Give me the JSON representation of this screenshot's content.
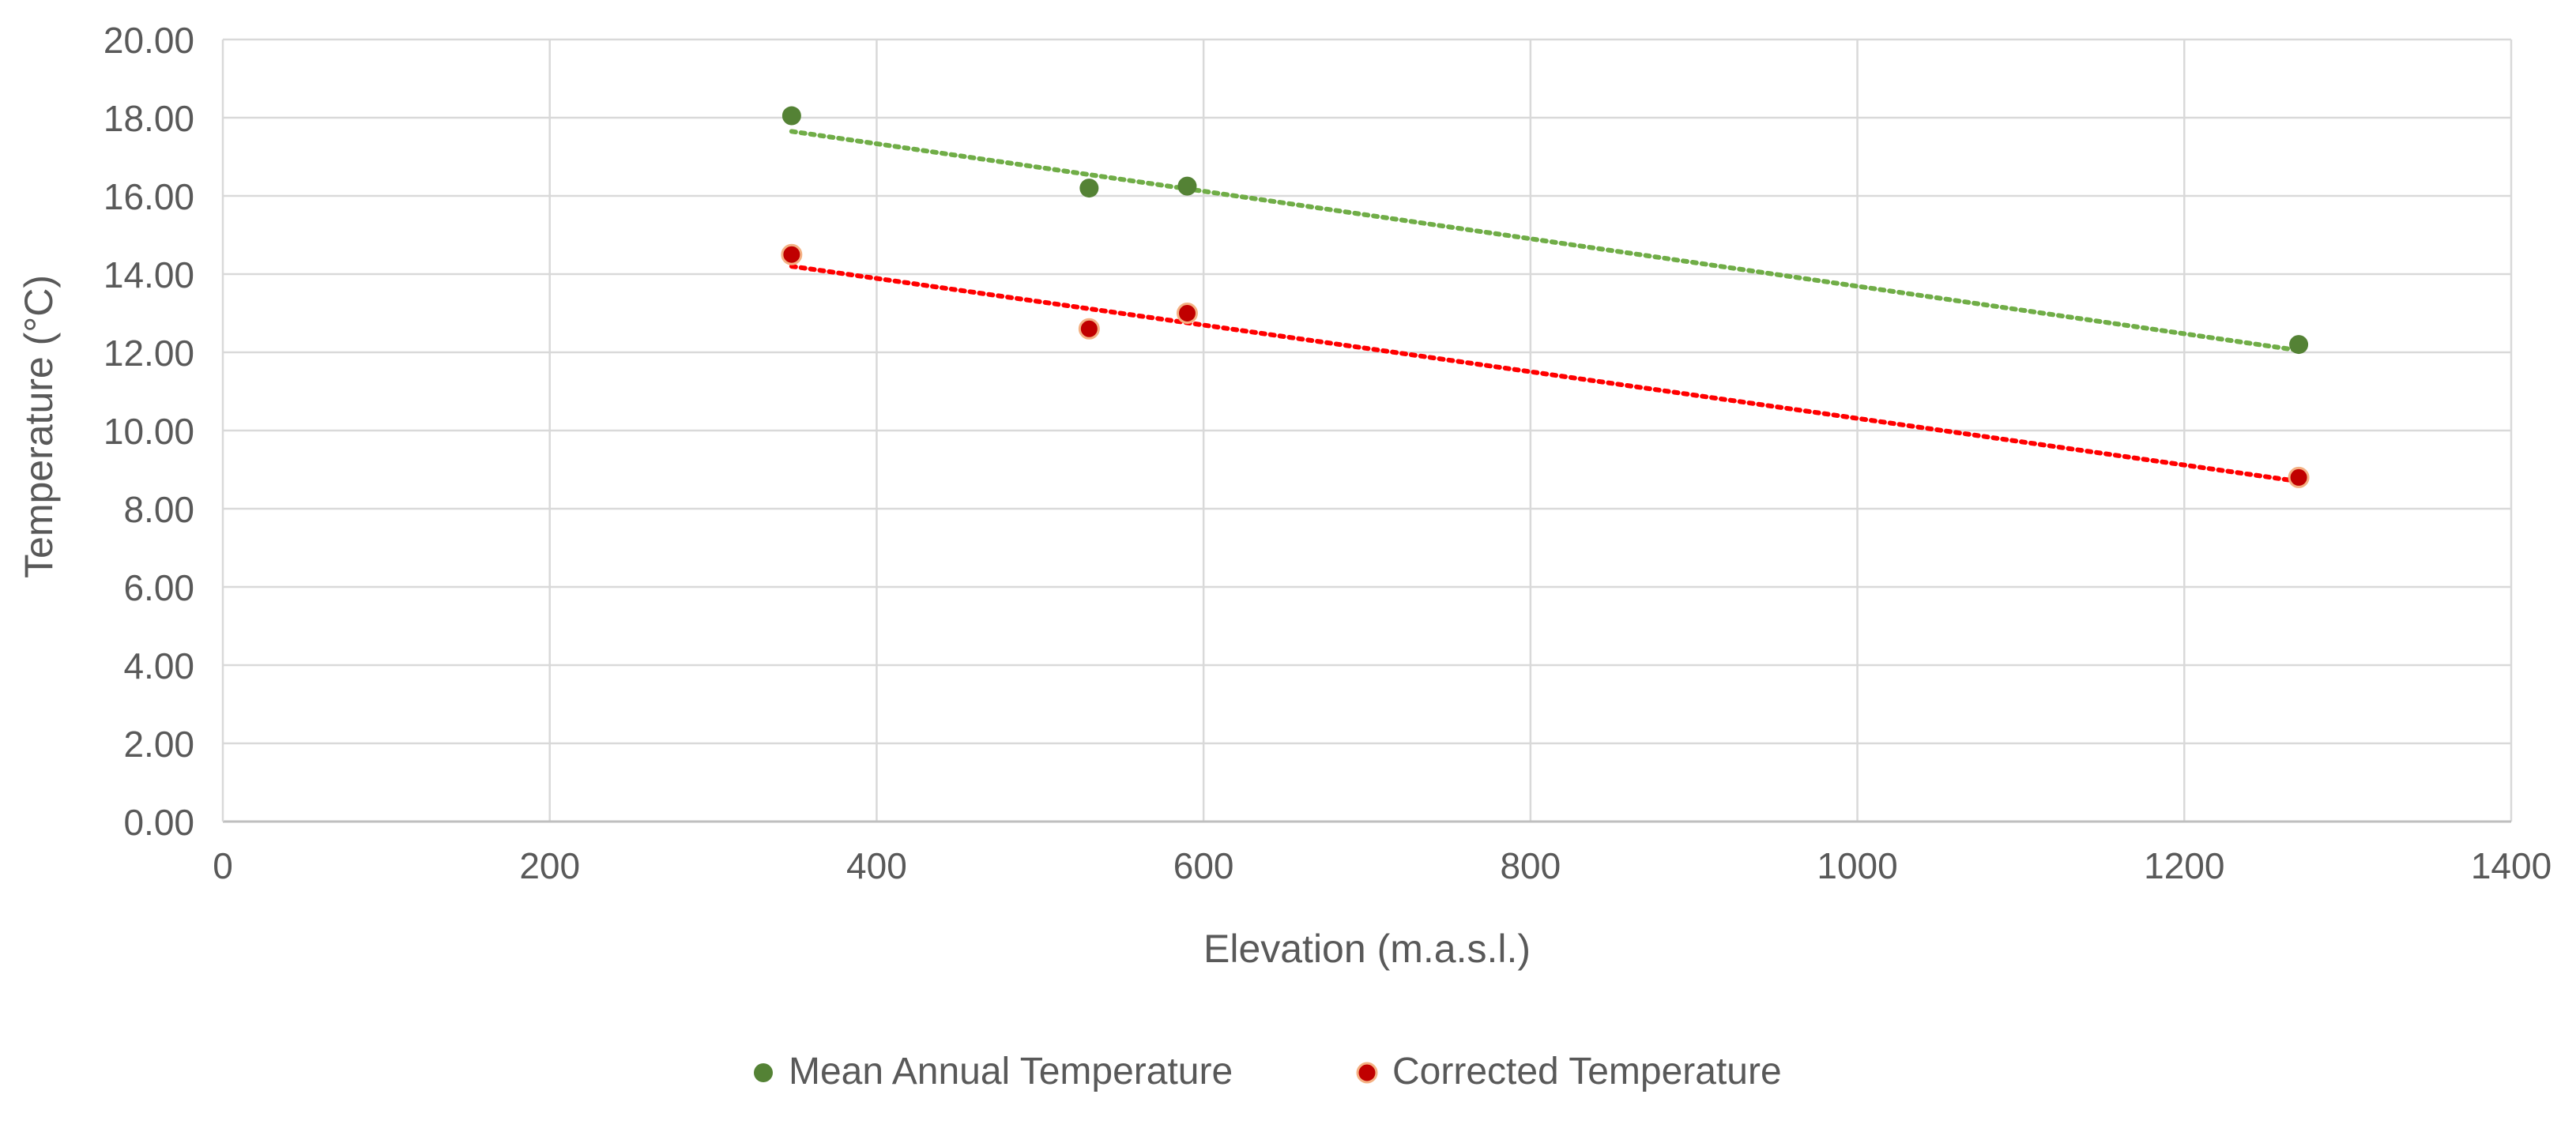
{
  "chart_data": {
    "type": "scatter",
    "title": "",
    "xlabel": "Elevation (m.a.s.l.)",
    "ylabel": "Temperature (°C)",
    "xlim": [
      0,
      1400
    ],
    "ylim": [
      0,
      20
    ],
    "x_ticks": [
      "0",
      "200",
      "400",
      "600",
      "800",
      "1000",
      "1200",
      "1400"
    ],
    "y_ticks": [
      "0.00",
      "2.00",
      "4.00",
      "6.00",
      "8.00",
      "10.00",
      "12.00",
      "14.00",
      "16.00",
      "18.00",
      "20.00"
    ],
    "grid": true,
    "legend_position": "bottom",
    "series": [
      {
        "name": "Mean Annual Temperature",
        "color": "#548235",
        "trendline_color": "#70AD47",
        "x": [
          348,
          530,
          590,
          1270
        ],
        "y": [
          18.05,
          16.2,
          16.25,
          12.2
        ],
        "trendline": {
          "x0": 348,
          "y0": 17.65,
          "x1": 1270,
          "y1": 12.05
        }
      },
      {
        "name": "Corrected Temperature",
        "color": "#C00000",
        "trendline_color": "#FF0000",
        "marker_edge": "#F4B183",
        "x": [
          348,
          530,
          590,
          1270
        ],
        "y": [
          14.5,
          12.6,
          13.0,
          8.8
        ],
        "trendline": {
          "x0": 348,
          "y0": 14.2,
          "x1": 1270,
          "y1": 8.7
        }
      }
    ]
  }
}
